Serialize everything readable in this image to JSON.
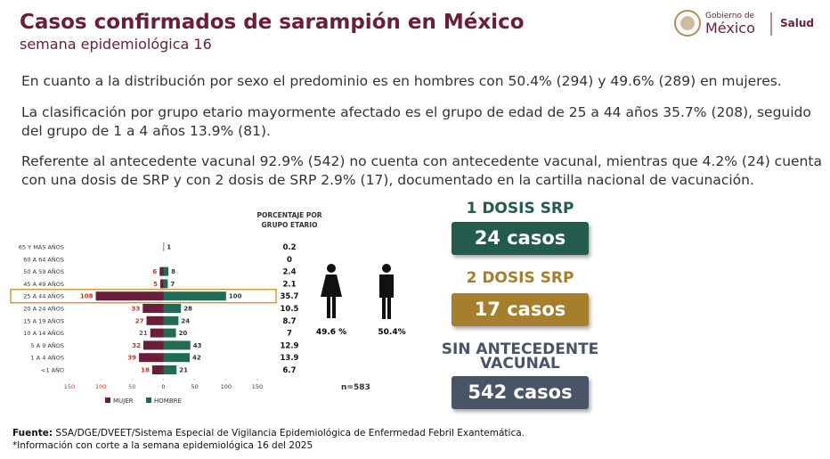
{
  "header": {
    "title": "Casos confirmados de sarampión en México",
    "subtitle": "semana epidemiológica 16"
  },
  "logo": {
    "line1": "Gobierno de",
    "line2": "México",
    "agency": "Salud"
  },
  "paragraphs": [
    "En cuanto a la distribución por sexo el predominio es en hombres con 50.4% (294) y 49.6% (289) en mujeres.",
    "La clasificación por grupo etario mayormente afectado es el grupo de edad de 25 a 44 años 35.7% (208), seguido del grupo de 1 a 4 años 13.9% (81).",
    "Referente al antecedente vacunal 92.9% (542) no cuenta con antecedente vacunal, mientras que 4.2% (24) cuenta con una dosis de SRP y con 2 dosis de SRP 2.9% (17), documentado en la cartilla nacional de vacunación."
  ],
  "chart_data": {
    "type": "bar",
    "categories": [
      "65 Y MÁS AÑOS",
      "60 A 64 AÑOS",
      "50 A 59 AÑOS",
      "45 A 49 AÑOS",
      "25 A 44 AÑOS",
      "20 A 24 AÑOS",
      "15 A 19 AÑOS",
      "10 A 14 AÑOS",
      "5 A 9 AÑOS",
      "1 A 4 AÑOS",
      "<1 AÑO"
    ],
    "series": [
      {
        "name": "MUJER",
        "color": "#6b1e3a",
        "label_color": "#c0392b",
        "values": [
          0,
          0,
          6,
          5,
          108,
          33,
          27,
          21,
          32,
          39,
          18
        ]
      },
      {
        "name": "HOMBRE",
        "color": "#1f6b53",
        "label_color": "#333333",
        "values": [
          1,
          0,
          8,
          7,
          100,
          28,
          24,
          20,
          43,
          42,
          21
        ]
      }
    ],
    "percent": {
      "title": "PORCENTAJE POR GRUPO ETARIO",
      "values": [
        0.2,
        0,
        2.4,
        2.1,
        35.7,
        10.5,
        8.7,
        7,
        12.9,
        13.9,
        6.7
      ]
    },
    "xlim": [
      -150,
      150
    ],
    "xticks": [
      {
        "value": -150,
        "label": "150"
      },
      {
        "value": -100,
        "label": "100"
      },
      {
        "value": -50,
        "label": "50"
      },
      0,
      50,
      100,
      150
    ],
    "n_label": "n=583"
  },
  "sex_split": {
    "female": "49.6 %",
    "male": "50.4%"
  },
  "vaccine_boxes": [
    {
      "title": "1 DOSIS SRP",
      "value": "24 casos",
      "color": "#235b4e"
    },
    {
      "title": "2 DOSIS SRP",
      "value": "17 casos",
      "color": "#a57f2c"
    },
    {
      "title": "SIN ANTECEDENTE VACUNAL",
      "value": "542 casos",
      "color": "#4a5467"
    }
  ],
  "footer": {
    "source_label": "Fuente:",
    "source": " SSA/DGE/DVEET/Sistema Especial de Vigilancia Epidemiológica de Enfermedad Febril Exantemática.",
    "note": "*Información con corte a la semana epidemiológica 16 del 2025"
  }
}
